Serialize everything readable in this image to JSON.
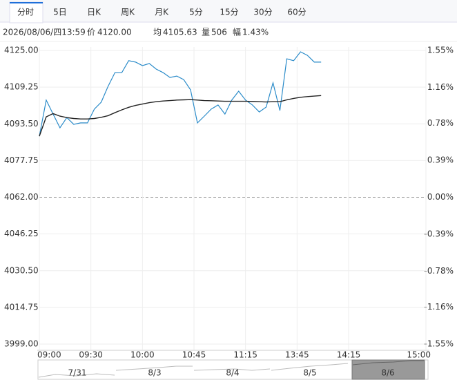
{
  "tabs": [
    "分时",
    "5日",
    "日K",
    "周K",
    "月K",
    "5分",
    "15分",
    "30分",
    "60分"
  ],
  "info": {
    "date_time": "2026/08/06/四13:59",
    "price_label": "价",
    "price": "4120.00",
    "avg_label": "均",
    "avg": "4105.63",
    "volume_label": "量",
    "volume": "506",
    "range_label": "幅",
    "range": "1.43%"
  },
  "navigator": [
    "7/31",
    "8/3",
    "8/4",
    "8/5",
    "8/6"
  ],
  "chart_data": {
    "type": "line",
    "x": [
      0,
      4,
      8,
      12,
      16,
      20,
      24,
      28,
      32,
      36,
      40,
      44,
      48,
      52,
      56,
      60,
      64,
      68,
      72,
      76,
      80,
      84,
      88,
      92,
      96,
      100,
      104,
      108,
      112,
      116,
      120,
      124,
      128,
      132,
      136,
      140,
      144,
      148,
      152,
      156,
      160,
      164
    ],
    "series": [
      {
        "color": "#2a8bc9",
        "values": [
          4088.2,
          4103.7,
          4097.7,
          4091.8,
          4096.2,
          4093.3,
          4093.9,
          4093.9,
          4099.8,
          4102.8,
          4109.6,
          4115.5,
          4115.5,
          4120.6,
          4120.0,
          4118.5,
          4119.4,
          4117.0,
          4115.5,
          4113.4,
          4114.0,
          4112.5,
          4108.1,
          4093.9,
          4096.8,
          4099.8,
          4101.6,
          4097.7,
          4103.7,
          4107.5,
          4103.7,
          4101.6,
          4098.6,
          4100.7,
          4111.1,
          4099.2,
          4121.4,
          4120.6,
          4124.4,
          4122.9,
          4120.0,
          4120.0
        ]
      },
      {
        "color": "#222222",
        "values": [
          4088.2,
          4096.5,
          4097.9,
          4096.8,
          4096.2,
          4095.8,
          4095.6,
          4095.6,
          4095.8,
          4096.3,
          4097.0,
          4098.3,
          4099.5,
          4100.6,
          4101.4,
          4102.0,
          4102.6,
          4103.0,
          4103.3,
          4103.5,
          4103.7,
          4103.8,
          4103.9,
          4103.7,
          4103.5,
          4103.4,
          4103.3,
          4103.2,
          4103.2,
          4103.2,
          4103.2,
          4103.1,
          4103.0,
          4102.9,
          4103.0,
          4103.0,
          4103.8,
          4104.4,
          4104.9,
          4105.2,
          4105.4,
          4105.63
        ]
      }
    ],
    "xlim": [
      0,
      225
    ],
    "xticks": [
      {
        "value": 0,
        "label": "09:00"
      },
      {
        "value": 30,
        "label": "09:30"
      },
      {
        "value": 60,
        "label": "10:00"
      },
      {
        "value": 90,
        "label": "10:45"
      },
      {
        "value": 120,
        "label": "11:15"
      },
      {
        "value": 150,
        "label": "13:45"
      },
      {
        "value": 180,
        "label": "14:15"
      },
      {
        "value": 225,
        "label": "15:00"
      }
    ],
    "ylim": [
      3999,
      4125
    ],
    "yticks": [
      {
        "value": 4125,
        "label": "4125.00"
      },
      {
        "value": 4109.25,
        "label": "4109.25"
      },
      {
        "value": 4093.5,
        "label": "4093.50"
      },
      {
        "value": 4077.75,
        "label": "4077.75"
      },
      {
        "value": 4062,
        "label": "4062.00"
      },
      {
        "value": 4046.25,
        "label": "4046.25"
      },
      {
        "value": 4030.5,
        "label": "4030.50"
      },
      {
        "value": 4014.75,
        "label": "4014.75"
      },
      {
        "value": 3999,
        "label": "3999.00"
      }
    ],
    "y2lim": [
      -1.55,
      1.55
    ],
    "y2ticks": [
      {
        "value": 1.55,
        "label": "1.55%"
      },
      {
        "value": 1.16,
        "label": "1.16%"
      },
      {
        "value": 0.78,
        "label": "0.78%"
      },
      {
        "value": 0.39,
        "label": "0.39%"
      },
      {
        "value": 0,
        "label": "0.00%"
      },
      {
        "value": -0.39,
        "label": "-0.39%"
      },
      {
        "value": -0.78,
        "label": "-0.78%"
      },
      {
        "value": -1.16,
        "label": "-1.16%"
      },
      {
        "value": -1.55,
        "label": "-1.55%"
      }
    ],
    "reference": 4062,
    "up_color": "#e00000",
    "down_color": "#109910",
    "grid": true
  }
}
